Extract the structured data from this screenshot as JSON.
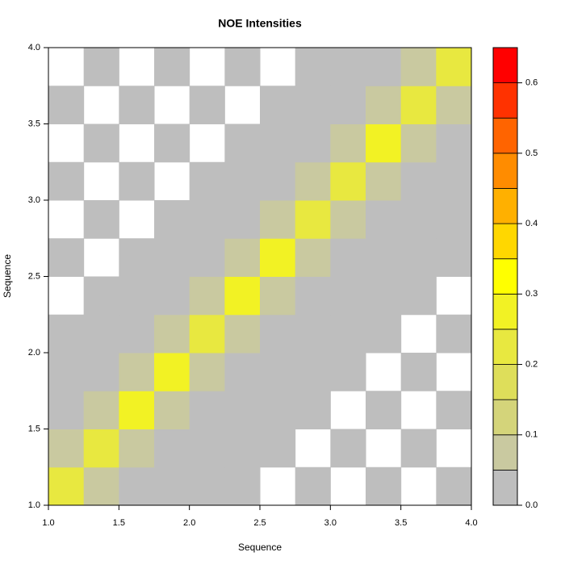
{
  "chart_data": {
    "type": "heatmap",
    "title": "NOE Intensities",
    "x_label": "Sequence",
    "y_label": "Sequence",
    "x": [
      1.125,
      1.375,
      1.625,
      1.875,
      2.125,
      2.375,
      2.625,
      2.875,
      3.125,
      3.375,
      3.625,
      3.875
    ],
    "y": [
      1.125,
      1.375,
      1.625,
      1.875,
      2.125,
      2.375,
      2.625,
      2.875,
      3.125,
      3.375,
      3.625,
      3.875
    ],
    "z": [
      [
        0.22,
        0.08,
        0.02,
        0.02,
        0.02,
        0.02,
        null,
        0.02,
        null,
        0.02,
        null,
        0.02
      ],
      [
        0.08,
        0.25,
        0.1,
        0.02,
        0.02,
        0.02,
        0.02,
        null,
        0.02,
        null,
        0.02,
        null
      ],
      [
        0.02,
        0.1,
        0.28,
        0.1,
        0.02,
        0.02,
        0.02,
        0.02,
        null,
        0.02,
        null,
        0.02
      ],
      [
        0.02,
        0.02,
        0.1,
        0.27,
        0.1,
        0.02,
        0.02,
        0.02,
        0.02,
        null,
        0.02,
        null
      ],
      [
        0.02,
        0.02,
        0.02,
        0.1,
        0.22,
        0.1,
        0.02,
        0.02,
        0.02,
        0.02,
        null,
        0.02
      ],
      [
        null,
        0.02,
        0.02,
        0.02,
        0.1,
        0.26,
        0.1,
        0.02,
        0.02,
        0.02,
        0.02,
        null
      ],
      [
        0.02,
        null,
        0.02,
        0.02,
        0.02,
        0.1,
        0.3,
        0.1,
        0.02,
        0.02,
        0.02,
        0.02
      ],
      [
        null,
        0.02,
        null,
        0.02,
        0.02,
        0.02,
        0.1,
        0.25,
        0.1,
        0.02,
        0.02,
        0.02
      ],
      [
        0.02,
        null,
        0.02,
        null,
        0.02,
        0.02,
        0.02,
        0.1,
        0.22,
        0.1,
        0.02,
        0.02
      ],
      [
        null,
        0.02,
        null,
        0.02,
        null,
        0.02,
        0.02,
        0.02,
        0.1,
        0.3,
        0.1,
        0.02
      ],
      [
        0.02,
        null,
        0.02,
        null,
        0.02,
        null,
        0.02,
        0.02,
        0.02,
        0.1,
        0.25,
        0.1
      ],
      [
        null,
        0.02,
        null,
        0.02,
        null,
        0.02,
        null,
        0.02,
        0.02,
        0.02,
        0.1,
        0.24
      ]
    ],
    "xlim": [
      1,
      4
    ],
    "ylim": [
      1,
      4
    ],
    "xticks": [
      {
        "value": 1,
        "label": "1.0"
      },
      1.5,
      {
        "value": 2,
        "label": "2.0"
      },
      2.5,
      {
        "value": 3,
        "label": "3.0"
      },
      3.5,
      {
        "value": 4,
        "label": "4.0"
      }
    ],
    "yticks": [
      {
        "value": 1,
        "label": "1.0"
      },
      1.5,
      {
        "value": 2,
        "label": "2.0"
      },
      2.5,
      {
        "value": 3,
        "label": "3.0"
      },
      3.5,
      {
        "value": 4,
        "label": "4.0"
      }
    ],
    "levels": [
      0,
      0.05,
      0.1,
      0.15,
      0.2,
      0.25,
      0.3,
      0.35,
      0.4,
      0.45,
      0.5,
      0.55,
      0.6,
      0.65
    ],
    "colors": [
      "#bebebe",
      "#c9c9a0",
      "#d4d47a",
      "#dede5a",
      "#e8e840",
      "#f2f224",
      "#ffff00",
      "#ffd700",
      "#ffb000",
      "#ff8c00",
      "#ff6400",
      "#ff3200",
      "#ff0000"
    ],
    "colorbar_ticks": [
      {
        "value": 0,
        "label": "0.0"
      },
      0.1,
      0.2,
      0.3,
      0.4,
      0.5,
      0.6
    ]
  }
}
